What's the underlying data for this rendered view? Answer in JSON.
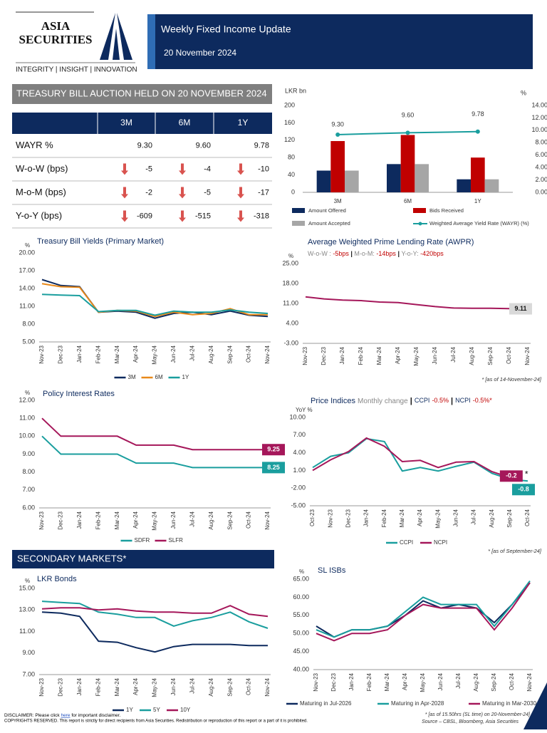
{
  "header": {
    "logo_top": "ASIA",
    "logo_bottom": "SECURITIES",
    "tagline": "INTEGRITY | INSIGHT | INNOVATION",
    "title": "Weekly Fixed Income Update",
    "date": "20 November 2024"
  },
  "auction_section": {
    "title": "TREASURY BILL AUCTION HELD ON 20 NOVEMBER 2024"
  },
  "table": {
    "columns": [
      "3M",
      "6M",
      "1Y"
    ],
    "rows": [
      [
        "WAYR %",
        "9.30",
        "9.60",
        "9.78"
      ],
      [
        "W-o-W (bps)",
        "-5",
        "-4",
        "-10"
      ],
      [
        "M-o-M (bps)",
        "-2",
        "-5",
        "-17"
      ],
      [
        "Y-o-Y (bps)",
        "-609",
        "-515",
        "-318"
      ]
    ]
  },
  "secondary_section": {
    "title": "SECONDARY MARKETS*"
  },
  "chart_data": [
    {
      "type": "combo",
      "y_label": "LKR bn",
      "y2_label": "%",
      "categories": [
        "3M",
        "6M",
        "1Y"
      ],
      "series": [
        {
          "name": "Amount Offered",
          "color": "#0d2a5e",
          "values": [
            50,
            65,
            30
          ]
        },
        {
          "name": "Bids Received",
          "color": "#c00000",
          "values": [
            118,
            132,
            80
          ]
        },
        {
          "name": "Amount Accepted",
          "color": "#a6a6a6",
          "values": [
            50,
            65,
            30
          ]
        },
        {
          "name": "Weighted Average Yield Rate (WAYR) (%)",
          "color": "#1a9e9e",
          "axis": "y2",
          "values": [
            9.3,
            9.6,
            9.78
          ],
          "value_labels": [
            "9.30",
            "9.60",
            "9.78"
          ]
        }
      ],
      "ylim": [
        0,
        200
      ],
      "yticks": [
        0,
        40,
        80,
        120,
        160,
        200
      ],
      "y2lim": [
        0,
        14
      ],
      "y2ticks": [
        {
          "value": 0,
          "label": "0.00"
        },
        {
          "value": 2,
          "label": "2.00"
        },
        {
          "value": 4,
          "label": "4.00"
        },
        {
          "value": 6,
          "label": "6.00"
        },
        {
          "value": 8,
          "label": "8.00"
        },
        {
          "value": 10,
          "label": "10.00"
        },
        {
          "value": 12,
          "label": "12.00"
        },
        {
          "value": 14,
          "label": "14.00"
        }
      ]
    },
    {
      "type": "line",
      "title": "Treasury Bill Yields (Primary Market)",
      "y_label": "%",
      "categories": [
        "Nov-23",
        "Dec-23",
        "Jan-24",
        "Feb-24",
        "Mar-24",
        "Apr-24",
        "May-24",
        "Jun-24",
        "Jul-24",
        "Aug-24",
        "Sep-24",
        "Oct-24",
        "Nov-24"
      ],
      "series": [
        {
          "name": "3M",
          "color": "#0d2a5e",
          "values": [
            15.5,
            14.5,
            14.3,
            10.0,
            10.2,
            10.0,
            9.0,
            9.8,
            10.0,
            9.6,
            10.2,
            9.5,
            9.3
          ]
        },
        {
          "name": "6M",
          "color": "#e8891a",
          "values": [
            14.8,
            14.3,
            14.2,
            10.0,
            10.3,
            10.2,
            9.3,
            10.0,
            9.6,
            9.8,
            10.6,
            9.6,
            9.6
          ]
        },
        {
          "name": "1Y",
          "color": "#1a9e9e",
          "values": [
            13.0,
            12.9,
            12.8,
            10.1,
            10.3,
            10.3,
            9.5,
            10.2,
            10.0,
            10.0,
            10.4,
            10.0,
            9.8
          ]
        }
      ],
      "ylim": [
        5,
        20
      ],
      "yticks": [
        {
          "value": 5,
          "label": "5.00"
        },
        {
          "value": 8,
          "label": "8.00"
        },
        {
          "value": 11,
          "label": "11.00"
        },
        {
          "value": 14,
          "label": "14.00"
        },
        {
          "value": 17,
          "label": "17.00"
        },
        {
          "value": 20,
          "label": "20.00"
        }
      ]
    },
    {
      "type": "line",
      "title": "Average Weighted Prime Lending Rate (AWPR)",
      "y_label": "%",
      "stats": [
        {
          "label": "W-o-W :",
          "value": "-5bps"
        },
        {
          "label": "M-o-M:",
          "value": "-14bps"
        },
        {
          "label": "Y-o-Y:",
          "value": "-420bps"
        }
      ],
      "note": "* [as of 14-November-24]",
      "categories": [
        "Nov-23",
        "Dec-23",
        "Jan-24",
        "Feb-24",
        "Mar-24",
        "Apr-24",
        "May-24",
        "Jun-24",
        "Jul-24",
        "Aug-24",
        "Sep-24",
        "Oct-24",
        "Nov-24"
      ],
      "series": [
        {
          "name": "AWPR",
          "color": "#a5175a",
          "values": [
            13.3,
            12.6,
            12.2,
            12.0,
            11.5,
            11.3,
            10.6,
            9.9,
            9.4,
            9.3,
            9.3,
            9.2,
            9.11
          ],
          "value_labels": [
            null,
            null,
            null,
            null,
            null,
            null,
            null,
            null,
            null,
            null,
            null,
            null,
            "9.11"
          ]
        }
      ],
      "ylim": [
        -3,
        25
      ],
      "yticks": [
        {
          "value": -3,
          "label": "-3.00"
        },
        {
          "value": 4,
          "label": "4.00"
        },
        {
          "value": 11,
          "label": "11.00"
        },
        {
          "value": 18,
          "label": "18.00"
        },
        {
          "value": 25,
          "label": "25.00"
        }
      ]
    },
    {
      "type": "line",
      "title": "Policy Interest Rates",
      "y_label": "%",
      "categories": [
        "Nov-23",
        "Dec-23",
        "Jan-24",
        "Feb-24",
        "Mar-24",
        "Apr-24",
        "May-24",
        "Jun-24",
        "Jul-24",
        "Aug-24",
        "Sep-24",
        "Oct-24",
        "Nov-24"
      ],
      "series": [
        {
          "name": "SDFR",
          "color": "#1a9e9e",
          "values": [
            10,
            9,
            9,
            9,
            9,
            8.5,
            8.5,
            8.5,
            8.25,
            8.25,
            8.25,
            8.25,
            8.25
          ],
          "value_labels": [
            null,
            null,
            null,
            null,
            null,
            null,
            null,
            null,
            null,
            null,
            null,
            null,
            "8.25"
          ]
        },
        {
          "name": "SLFR",
          "color": "#a5175a",
          "values": [
            11,
            10,
            10,
            10,
            10,
            9.5,
            9.5,
            9.5,
            9.25,
            9.25,
            9.25,
            9.25,
            9.25
          ],
          "value_labels": [
            null,
            null,
            null,
            null,
            null,
            null,
            null,
            null,
            null,
            null,
            null,
            null,
            "9.25"
          ]
        }
      ],
      "ylim": [
        6,
        12
      ],
      "yticks": [
        {
          "value": 6,
          "label": "6.00"
        },
        {
          "value": 7,
          "label": "7.00"
        },
        {
          "value": 8,
          "label": "8.00"
        },
        {
          "value": 9,
          "label": "9.00"
        },
        {
          "value": 10,
          "label": "10.00"
        },
        {
          "value": 11,
          "label": "11.00"
        },
        {
          "value": 12,
          "label": "12.00"
        }
      ]
    },
    {
      "type": "line",
      "title": "Price Indices",
      "subtitle": "Monthly change",
      "y_label": "YoY %",
      "stats": [
        {
          "label": "CCPI",
          "value": "-0.5%"
        },
        {
          "label": "NCPI",
          "value": "-0.5%*"
        }
      ],
      "annotation": "*",
      "note": "* [as of September-24]",
      "categories": [
        "Oct-23",
        "Nov-23",
        "Dec-23",
        "Jan-24",
        "Feb-24",
        "Mar-24",
        "Apr-24",
        "May-24",
        "Jun-24",
        "Jul-24",
        "Aug-24",
        "Sep-24",
        "Oct-24"
      ],
      "series": [
        {
          "name": "CCPI",
          "color": "#1a9e9e",
          "values": [
            1.5,
            3.4,
            4.0,
            6.4,
            5.9,
            0.9,
            1.5,
            0.9,
            1.7,
            2.4,
            0.5,
            -0.5,
            -0.8
          ],
          "value_labels": [
            null,
            null,
            null,
            null,
            null,
            null,
            null,
            null,
            null,
            null,
            null,
            null,
            "-0.8"
          ]
        },
        {
          "name": "NCPI",
          "color": "#a5175a",
          "values": [
            1.0,
            2.8,
            4.2,
            6.5,
            5.1,
            2.5,
            2.7,
            1.5,
            2.4,
            2.5,
            0.8,
            -0.2,
            null
          ],
          "value_labels": [
            null,
            null,
            null,
            null,
            null,
            null,
            null,
            null,
            null,
            null,
            null,
            "-0.2",
            null
          ]
        }
      ],
      "ylim": [
        -5,
        10
      ],
      "yticks": [
        {
          "value": -5,
          "label": "-5.00"
        },
        {
          "value": -2,
          "label": "-2.00"
        },
        {
          "value": 1,
          "label": "1.00"
        },
        {
          "value": 4,
          "label": "4.00"
        },
        {
          "value": 7,
          "label": "7.00"
        },
        {
          "value": 10,
          "label": "10.00"
        }
      ]
    },
    {
      "type": "line",
      "title": "LKR Bonds",
      "y_label": "%",
      "categories": [
        "Nov-23",
        "Dec-23",
        "Jan-24",
        "Feb-24",
        "Mar-24",
        "Apr-24",
        "May-24",
        "Jun-24",
        "Jul-24",
        "Aug-24",
        "Sep-24",
        "Oct-24",
        "Nov-24"
      ],
      "series": [
        {
          "name": "1Y",
          "color": "#0d2a5e",
          "values": [
            12.8,
            12.7,
            12.4,
            10.1,
            10.0,
            9.5,
            9.1,
            9.6,
            9.8,
            9.8,
            9.8,
            9.7,
            9.7
          ]
        },
        {
          "name": "5Y",
          "color": "#1a9e9e",
          "values": [
            13.8,
            13.7,
            13.6,
            12.8,
            12.6,
            12.3,
            12.3,
            11.5,
            12.0,
            12.3,
            12.8,
            11.9,
            11.3
          ]
        },
        {
          "name": "10Y",
          "color": "#a5175a",
          "values": [
            13.1,
            13.2,
            13.2,
            13.0,
            13.1,
            12.9,
            12.8,
            12.8,
            12.7,
            12.7,
            13.4,
            12.6,
            12.4
          ]
        }
      ],
      "ylim": [
        7,
        15
      ],
      "yticks": [
        {
          "value": 7,
          "label": "7.00"
        },
        {
          "value": 9,
          "label": "9.00"
        },
        {
          "value": 11,
          "label": "11.00"
        },
        {
          "value": 13,
          "label": "13.00"
        },
        {
          "value": 15,
          "label": "15.00"
        }
      ]
    },
    {
      "type": "line",
      "title": "SL ISBs",
      "y_label": "%",
      "categories": [
        "Nov-23",
        "Dec-23",
        "Jan-24",
        "Feb-24",
        "Mar-24",
        "Apr-24",
        "May-24",
        "Jun-24",
        "Jul-24",
        "Aug-24",
        "Sep-24",
        "Oct-24",
        "Nov-24"
      ],
      "series": [
        {
          "name": "Maturing in Jul-2026",
          "color": "#0d2a5e",
          "values": [
            52,
            49,
            51,
            51,
            52,
            55,
            59,
            57,
            58,
            57,
            53,
            58,
            64
          ]
        },
        {
          "name": "Maturing in Apr-2028",
          "color": "#1a9e9e",
          "values": [
            51,
            49,
            51,
            51,
            52,
            56,
            60,
            58,
            58,
            58,
            52,
            58,
            64.5
          ]
        },
        {
          "name": "Maturing in Mar-2030",
          "color": "#a5175a",
          "values": [
            50,
            48,
            50,
            50,
            51,
            55,
            58,
            57,
            57,
            57,
            51,
            57,
            64
          ]
        }
      ],
      "ylim": [
        40,
        65
      ],
      "yticks": [
        {
          "value": 40,
          "label": "40.00"
        },
        {
          "value": 45,
          "label": "45.00"
        },
        {
          "value": 50,
          "label": "50.00"
        },
        {
          "value": 55,
          "label": "55.00"
        },
        {
          "value": 60,
          "label": "60.00"
        },
        {
          "value": 65,
          "label": "65.00"
        }
      ]
    }
  ],
  "footer": {
    "disclaimer_prefix": "DISCLAIMER: Please click",
    "disclaimer_link": "here",
    "disclaimer_suffix": "for important disclaimer.",
    "copyright": "COPYRIGHTS RESERVED. This report is strictly for direct recipients from Asia Securities. Redistribution or reproduction of this report or a part of it is prohibited.",
    "time_note": "* [as of 15.50hrs (SL time) on 20-November-24]",
    "source": "Source – CBSL, Bloomberg, Asia Securities"
  }
}
